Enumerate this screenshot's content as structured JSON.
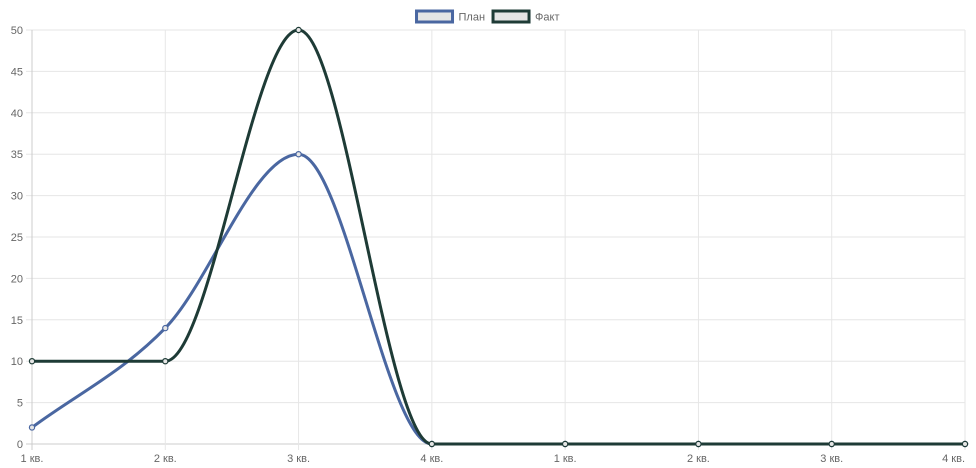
{
  "chart_data": {
    "type": "line",
    "categories": [
      "1 кв.",
      "2 кв.",
      "3 кв.",
      "4 кв.",
      "1 кв.",
      "2 кв.",
      "3 кв.",
      "4 кв."
    ],
    "series": [
      {
        "name": "План",
        "values": [
          2,
          14,
          35,
          0,
          0,
          0,
          0,
          0
        ],
        "color": "#4a67a1"
      },
      {
        "name": "Факт",
        "values": [
          10,
          10,
          50,
          0,
          0,
          0,
          0,
          0
        ],
        "color": "#1e3b36"
      }
    ],
    "ylim": [
      0,
      50
    ],
    "yticks": [
      0,
      5,
      10,
      15,
      20,
      25,
      30,
      35,
      40,
      45,
      50
    ],
    "grid": true,
    "smooth": true,
    "legend_position": "top-center",
    "title": "",
    "xlabel": "",
    "ylabel": "",
    "colors": {
      "grid": "#e6e6e6",
      "axis": "#cccccc",
      "tick_label": "#666666",
      "legend_fill": "#e5e5e5"
    }
  }
}
